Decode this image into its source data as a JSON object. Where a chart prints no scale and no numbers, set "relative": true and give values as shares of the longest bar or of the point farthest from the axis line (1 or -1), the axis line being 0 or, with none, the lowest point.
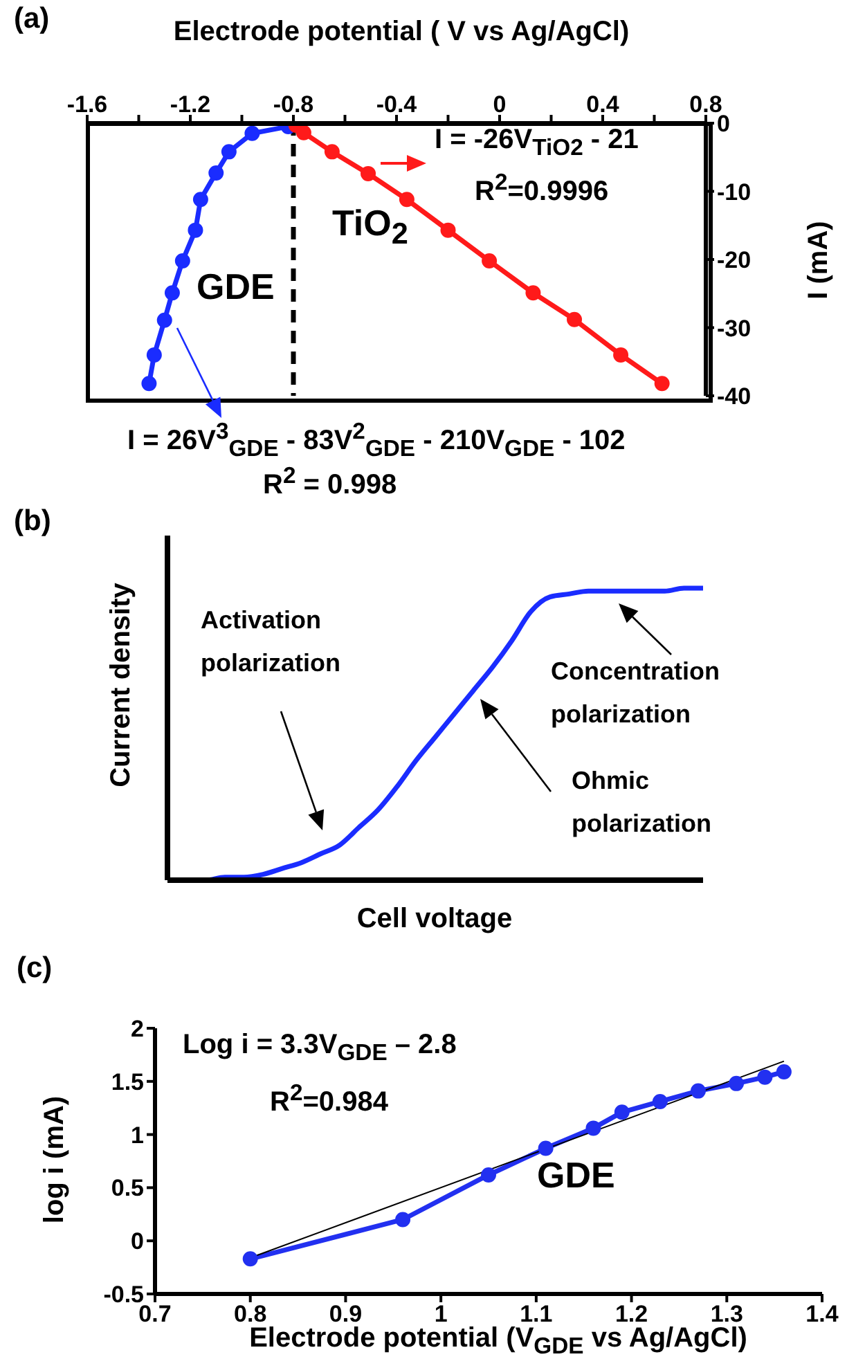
{
  "chart_data": [
    {
      "type": "line",
      "title": "(a)",
      "xlabel": "Electrode potential ( V vs Ag/AgCl)",
      "ylabel": "I (mA)",
      "marker": "circle",
      "grid": false,
      "xlim": [
        -1.6,
        0.8
      ],
      "xticks": [
        -1.6,
        {
          "value": -1.4,
          "label": null
        },
        -1.2,
        {
          "value": -1.0,
          "label": null
        },
        -0.8,
        {
          "value": -0.6,
          "label": null
        },
        -0.4,
        {
          "value": -0.2,
          "label": null
        },
        0,
        {
          "value": 0.2,
          "label": null
        },
        0.4,
        {
          "value": 0.6,
          "label": null
        },
        0.8
      ],
      "ylim": [
        -40,
        0
      ],
      "yticks": [
        -40,
        -30,
        -20,
        -10,
        0
      ],
      "series": [
        {
          "color": "#1a2cff",
          "x": [
            -1.36,
            -1.34,
            -1.3,
            -1.27,
            -1.23,
            -1.18,
            -1.16,
            -1.1,
            -1.05,
            -0.96,
            -0.82
          ],
          "values": [
            -38.2,
            -34,
            -28.9,
            -24.9,
            -20.2,
            -15.7,
            -11.2,
            -7.3,
            -4.2,
            -1.5,
            -0.5
          ]
        },
        {
          "color": "#ff1a1a",
          "x": [
            -0.79,
            -0.76,
            -0.65,
            -0.51,
            -0.36,
            -0.2,
            -0.04,
            0.13,
            0.29,
            0.47,
            0.63
          ],
          "values": [
            -0.3,
            -1.4,
            -4.2,
            -7.4,
            -11.2,
            -15.7,
            -20.2,
            -24.9,
            -28.8,
            -34,
            -38.2
          ]
        }
      ],
      "ref_lines": [
        {
          "axis": "x",
          "value": -0.8,
          "color": "#000000",
          "line_style": "dashed"
        }
      ],
      "annotations": [
        "GDE",
        "TiO$_{2}$",
        "I = -26V$_{TiO2}$ - 21",
        "R$^{2}$=0.9996",
        "I = 26V$^{3}$$_{GDE}$ - 83V$^{2}$$_{GDE}$ - 210V$_{GDE}$ - 102",
        "R$^{2}$ = 0.998"
      ]
    },
    {
      "type": "line",
      "title": "(b)",
      "xlabel": "Cell voltage",
      "ylabel": "Current density",
      "relative": true,
      "marker": "none",
      "categories": [
        null,
        null,
        null,
        null,
        null,
        null,
        null,
        null,
        null,
        null,
        null,
        null,
        null,
        null,
        null,
        null,
        null,
        null,
        null,
        null,
        null,
        null,
        null,
        null,
        null,
        null,
        null,
        null,
        null
      ],
      "series": [
        {
          "color": "#1a2cff",
          "values": [
            0,
            0,
            0,
            0.01,
            0.01,
            0.02,
            0.04,
            0.06,
            0.09,
            0.12,
            0.18,
            0.24,
            0.32,
            0.41,
            0.49,
            0.57,
            0.65,
            0.73,
            0.82,
            0.92,
            0.97,
            0.98,
            0.99,
            0.99,
            0.99,
            0.99,
            0.99,
            1,
            1
          ]
        }
      ],
      "annotations": [
        "Activation polarization",
        "Concentration polarization",
        "Ohmic polarization"
      ]
    },
    {
      "type": "line",
      "title": "(c)",
      "xlabel": "Electrode potential (V$_{GDE}$ vs Ag/AgCl)",
      "ylabel": "log i (mA)",
      "marker": "circle",
      "xlim": [
        0.7,
        1.4
      ],
      "xticks": [
        0.7,
        0.8,
        0.9,
        1,
        1.1,
        1.2,
        1.3,
        1.4
      ],
      "ylim": [
        -0.5,
        2
      ],
      "yticks": [
        -0.5,
        0,
        0.5,
        1,
        1.5,
        2
      ],
      "series": [
        {
          "color": "#2230f0",
          "x": [
            0.8,
            0.96,
            1.05,
            1.11,
            1.16,
            1.19,
            1.23,
            1.27,
            1.31,
            1.34,
            1.36
          ],
          "values": [
            -0.17,
            0.2,
            0.62,
            0.87,
            1.06,
            1.21,
            1.31,
            1.41,
            1.48,
            1.54,
            1.59
          ]
        },
        {
          "color": "#000000",
          "marker": "none",
          "x": [
            0.8,
            1.36
          ],
          "values": [
            -0.16,
            1.69
          ]
        }
      ],
      "annotations": [
        "Log i = 3.3V$_{GDE}$ – 2.8",
        "R$^{2}$=0.984",
        "GDE"
      ]
    }
  ]
}
